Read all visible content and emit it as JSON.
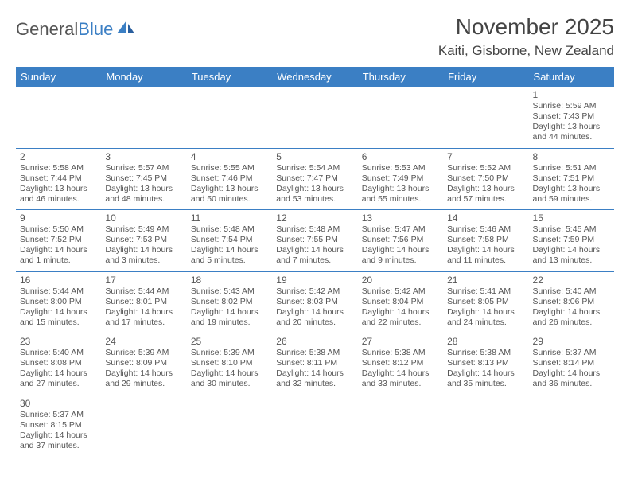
{
  "brand": {
    "part1": "General",
    "part2": "Blue"
  },
  "title": "November 2025",
  "location": "Kaiti, Gisborne, New Zealand",
  "header_bg": "#3b7fc4",
  "border_color": "#3b7fc4",
  "day_headers": [
    "Sunday",
    "Monday",
    "Tuesday",
    "Wednesday",
    "Thursday",
    "Friday",
    "Saturday"
  ],
  "weeks": [
    [
      null,
      null,
      null,
      null,
      null,
      null,
      {
        "n": "1",
        "sr": "5:59 AM",
        "ss": "7:43 PM",
        "dl": "13 hours and 44 minutes."
      }
    ],
    [
      {
        "n": "2",
        "sr": "5:58 AM",
        "ss": "7:44 PM",
        "dl": "13 hours and 46 minutes."
      },
      {
        "n": "3",
        "sr": "5:57 AM",
        "ss": "7:45 PM",
        "dl": "13 hours and 48 minutes."
      },
      {
        "n": "4",
        "sr": "5:55 AM",
        "ss": "7:46 PM",
        "dl": "13 hours and 50 minutes."
      },
      {
        "n": "5",
        "sr": "5:54 AM",
        "ss": "7:47 PM",
        "dl": "13 hours and 53 minutes."
      },
      {
        "n": "6",
        "sr": "5:53 AM",
        "ss": "7:49 PM",
        "dl": "13 hours and 55 minutes."
      },
      {
        "n": "7",
        "sr": "5:52 AM",
        "ss": "7:50 PM",
        "dl": "13 hours and 57 minutes."
      },
      {
        "n": "8",
        "sr": "5:51 AM",
        "ss": "7:51 PM",
        "dl": "13 hours and 59 minutes."
      }
    ],
    [
      {
        "n": "9",
        "sr": "5:50 AM",
        "ss": "7:52 PM",
        "dl": "14 hours and 1 minute."
      },
      {
        "n": "10",
        "sr": "5:49 AM",
        "ss": "7:53 PM",
        "dl": "14 hours and 3 minutes."
      },
      {
        "n": "11",
        "sr": "5:48 AM",
        "ss": "7:54 PM",
        "dl": "14 hours and 5 minutes."
      },
      {
        "n": "12",
        "sr": "5:48 AM",
        "ss": "7:55 PM",
        "dl": "14 hours and 7 minutes."
      },
      {
        "n": "13",
        "sr": "5:47 AM",
        "ss": "7:56 PM",
        "dl": "14 hours and 9 minutes."
      },
      {
        "n": "14",
        "sr": "5:46 AM",
        "ss": "7:58 PM",
        "dl": "14 hours and 11 minutes."
      },
      {
        "n": "15",
        "sr": "5:45 AM",
        "ss": "7:59 PM",
        "dl": "14 hours and 13 minutes."
      }
    ],
    [
      {
        "n": "16",
        "sr": "5:44 AM",
        "ss": "8:00 PM",
        "dl": "14 hours and 15 minutes."
      },
      {
        "n": "17",
        "sr": "5:44 AM",
        "ss": "8:01 PM",
        "dl": "14 hours and 17 minutes."
      },
      {
        "n": "18",
        "sr": "5:43 AM",
        "ss": "8:02 PM",
        "dl": "14 hours and 19 minutes."
      },
      {
        "n": "19",
        "sr": "5:42 AM",
        "ss": "8:03 PM",
        "dl": "14 hours and 20 minutes."
      },
      {
        "n": "20",
        "sr": "5:42 AM",
        "ss": "8:04 PM",
        "dl": "14 hours and 22 minutes."
      },
      {
        "n": "21",
        "sr": "5:41 AM",
        "ss": "8:05 PM",
        "dl": "14 hours and 24 minutes."
      },
      {
        "n": "22",
        "sr": "5:40 AM",
        "ss": "8:06 PM",
        "dl": "14 hours and 26 minutes."
      }
    ],
    [
      {
        "n": "23",
        "sr": "5:40 AM",
        "ss": "8:08 PM",
        "dl": "14 hours and 27 minutes."
      },
      {
        "n": "24",
        "sr": "5:39 AM",
        "ss": "8:09 PM",
        "dl": "14 hours and 29 minutes."
      },
      {
        "n": "25",
        "sr": "5:39 AM",
        "ss": "8:10 PM",
        "dl": "14 hours and 30 minutes."
      },
      {
        "n": "26",
        "sr": "5:38 AM",
        "ss": "8:11 PM",
        "dl": "14 hours and 32 minutes."
      },
      {
        "n": "27",
        "sr": "5:38 AM",
        "ss": "8:12 PM",
        "dl": "14 hours and 33 minutes."
      },
      {
        "n": "28",
        "sr": "5:38 AM",
        "ss": "8:13 PM",
        "dl": "14 hours and 35 minutes."
      },
      {
        "n": "29",
        "sr": "5:37 AM",
        "ss": "8:14 PM",
        "dl": "14 hours and 36 minutes."
      }
    ],
    [
      {
        "n": "30",
        "sr": "5:37 AM",
        "ss": "8:15 PM",
        "dl": "14 hours and 37 minutes."
      },
      null,
      null,
      null,
      null,
      null,
      null
    ]
  ],
  "labels": {
    "sunrise": "Sunrise: ",
    "sunset": "Sunset: ",
    "daylight": "Daylight: "
  }
}
